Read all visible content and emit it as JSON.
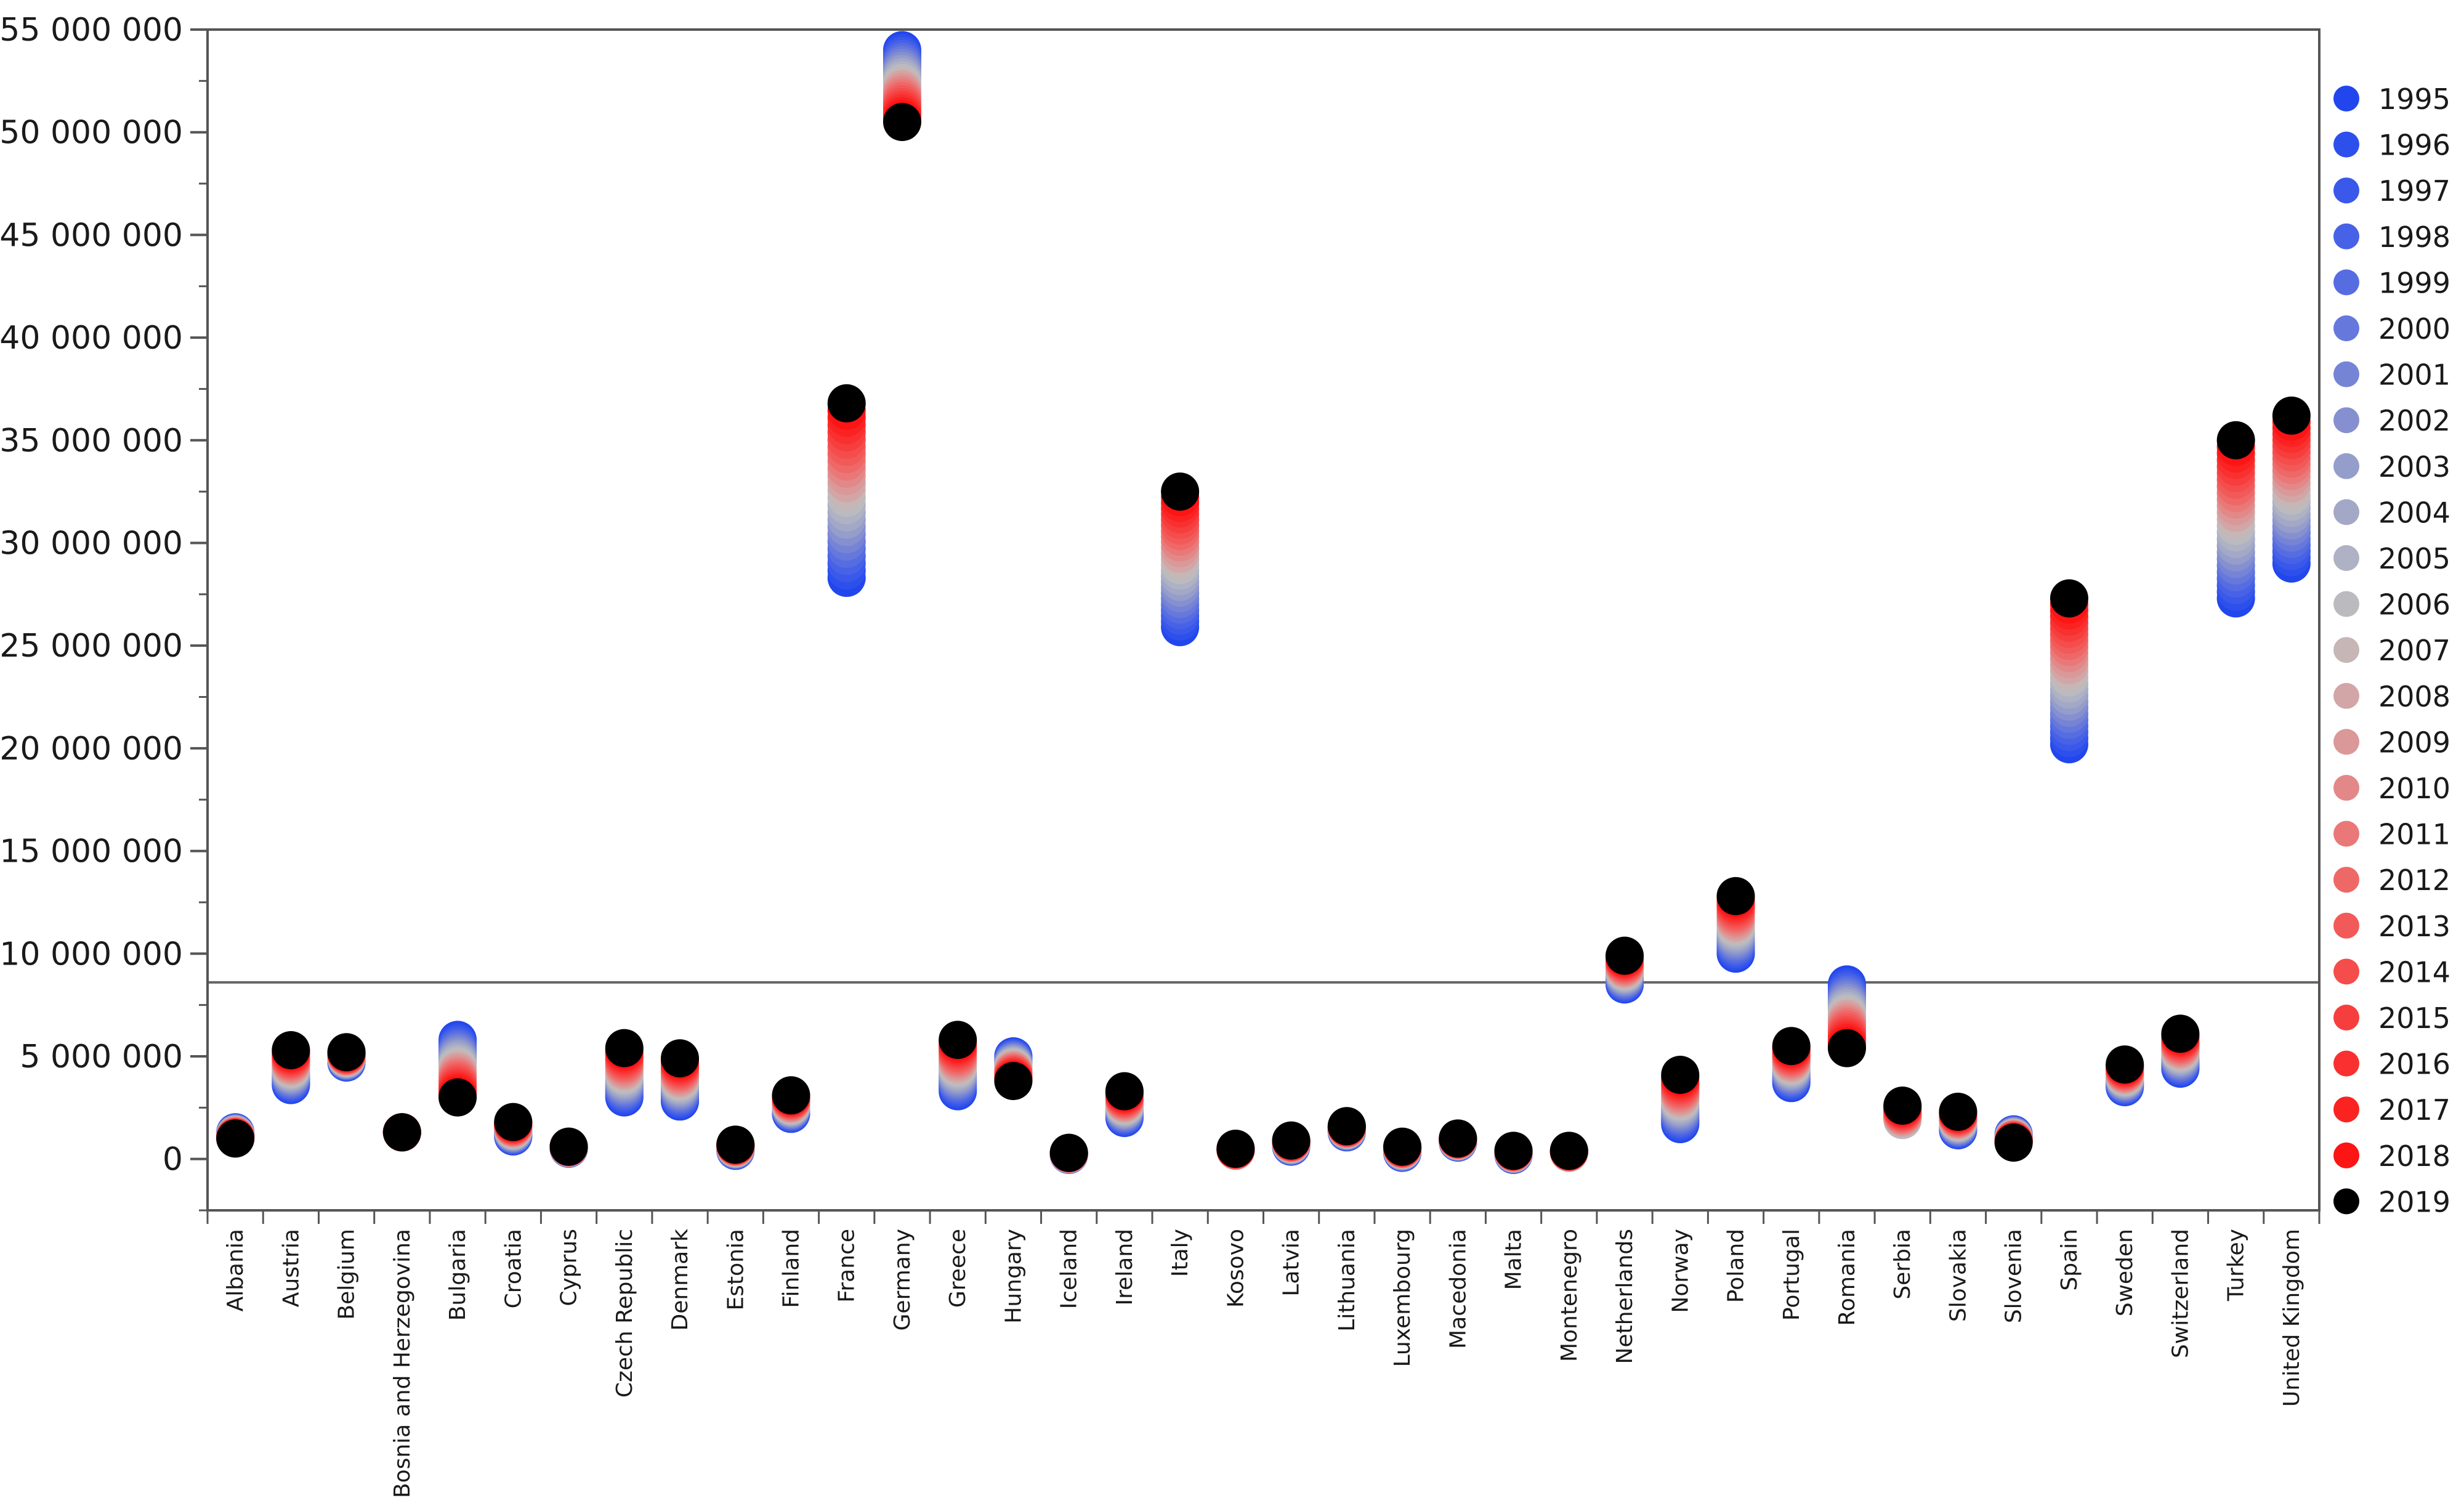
{
  "chart_data": {
    "type": "scatter",
    "title": "",
    "xlabel": "",
    "ylabel": "",
    "ylim": [
      -2500000,
      55000000
    ],
    "y_ticks": [
      {
        "value": 0,
        "label": "0"
      },
      {
        "value": 5000000,
        "label": "5 000 000"
      },
      {
        "value": 10000000,
        "label": "10 000 000"
      },
      {
        "value": 15000000,
        "label": "15 000 000"
      },
      {
        "value": 20000000,
        "label": "20 000 000"
      },
      {
        "value": 25000000,
        "label": "25 000 000"
      },
      {
        "value": 30000000,
        "label": "30 000 000"
      },
      {
        "value": 35000000,
        "label": "35 000 000"
      },
      {
        "value": 40000000,
        "label": "40 000 000"
      },
      {
        "value": 45000000,
        "label": "45 000 000"
      },
      {
        "value": 50000000,
        "label": "50 000 000"
      },
      {
        "value": 55000000,
        "label": "55 000 000"
      }
    ],
    "reference_line": 8600000,
    "legend_position": "right",
    "colors": {
      "1995": "#2246ee",
      "1996": "#2d4fec",
      "1997": "#3a58ea",
      "1998": "#4762e6",
      "1999": "#566de2",
      "2000": "#6678dc",
      "2001": "#7684d6",
      "2002": "#8690d0",
      "2003": "#959dca",
      "2004": "#a2a8c6",
      "2005": "#aeb2c4",
      "2006": "#bbbbbf",
      "2007": "#c7b6b6",
      "2008": "#d2a6a6",
      "2009": "#db9898",
      "2010": "#e28888",
      "2011": "#ea7878",
      "2012": "#ef6868",
      "2013": "#f25a5a",
      "2014": "#f54c4c",
      "2015": "#f73e3e",
      "2016": "#f93030",
      "2017": "#fb2222",
      "2018": "#fd1414",
      "2019": "#000000"
    },
    "years": [
      "1995",
      "1996",
      "1997",
      "1998",
      "1999",
      "2000",
      "2001",
      "2002",
      "2003",
      "2004",
      "2005",
      "2006",
      "2007",
      "2008",
      "2009",
      "2010",
      "2011",
      "2012",
      "2013",
      "2014",
      "2015",
      "2016",
      "2017",
      "2018",
      "2019"
    ],
    "categories": [
      "Albania",
      "Austria",
      "Belgium",
      "Bosnia and Herzegovina",
      "Bulgaria",
      "Croatia",
      "Cyprus",
      "Czech Republic",
      "Denmark",
      "Estonia",
      "Finland",
      "France",
      "Germany",
      "Greece",
      "Hungary",
      "Iceland",
      "Ireland",
      "Italy",
      "Kosovo",
      "Latvia",
      "Lithuania",
      "Luxembourg",
      "Macedonia",
      "Malta",
      "Montenegro",
      "Netherlands",
      "Norway",
      "Poland",
      "Portugal",
      "Romania",
      "Serbia",
      "Slovakia",
      "Slovenia",
      "Spain",
      "Sweden",
      "Switzerland",
      "Turkey",
      "United Kingdom"
    ],
    "series": [
      {
        "name": "Albania",
        "start": 1300000,
        "end": 1000000,
        "start_year": "1995"
      },
      {
        "name": "Austria",
        "start": 3600000,
        "end": 5300000,
        "start_year": "1995"
      },
      {
        "name": "Belgium",
        "start": 4700000,
        "end": 5200000,
        "start_year": "1995"
      },
      {
        "name": "Bosnia and Herzegovina",
        "start": 1300000,
        "end": 1300000,
        "start_year": "2008"
      },
      {
        "name": "Bulgaria",
        "start": 5800000,
        "end": 3000000,
        "start_year": "1995"
      },
      {
        "name": "Croatia",
        "start": 1100000,
        "end": 1800000,
        "start_year": "1995"
      },
      {
        "name": "Cyprus",
        "start": 500000,
        "end": 600000,
        "start_year": "1995"
      },
      {
        "name": "Czech Republic",
        "start": 3000000,
        "end": 5400000,
        "start_year": "1995"
      },
      {
        "name": "Denmark",
        "start": 2800000,
        "end": 4900000,
        "start_year": "1995"
      },
      {
        "name": "Estonia",
        "start": 400000,
        "end": 700000,
        "start_year": "1995"
      },
      {
        "name": "Finland",
        "start": 2200000,
        "end": 3100000,
        "start_year": "1995"
      },
      {
        "name": "France",
        "start": 28300000,
        "end": 36800000,
        "start_year": "1995"
      },
      {
        "name": "Germany",
        "start": 54000000,
        "end": 50500000,
        "start_year": "1995"
      },
      {
        "name": "Greece",
        "start": 3300000,
        "end": 5800000,
        "start_year": "1995"
      },
      {
        "name": "Hungary",
        "start": 5000000,
        "end": 3800000,
        "start_year": "1995"
      },
      {
        "name": "Iceland",
        "start": 200000,
        "end": 300000,
        "start_year": "1995"
      },
      {
        "name": "Ireland",
        "start": 2000000,
        "end": 3300000,
        "start_year": "1995"
      },
      {
        "name": "Italy",
        "start": 25900000,
        "end": 32500000,
        "start_year": "1995"
      },
      {
        "name": "Kosovo",
        "start": 400000,
        "end": 500000,
        "start_year": "2008"
      },
      {
        "name": "Latvia",
        "start": 600000,
        "end": 900000,
        "start_year": "1995"
      },
      {
        "name": "Lithuania",
        "start": 1300000,
        "end": 1600000,
        "start_year": "1995"
      },
      {
        "name": "Luxembourg",
        "start": 300000,
        "end": 600000,
        "start_year": "1995"
      },
      {
        "name": "Macedonia",
        "start": 800000,
        "end": 1000000,
        "start_year": "1995"
      },
      {
        "name": "Malta",
        "start": 200000,
        "end": 400000,
        "start_year": "1995"
      },
      {
        "name": "Montenegro",
        "start": 300000,
        "end": 400000,
        "start_year": "2006"
      },
      {
        "name": "Netherlands",
        "start": 8500000,
        "end": 9900000,
        "start_year": "1995"
      },
      {
        "name": "Norway",
        "start": 1700000,
        "end": 4100000,
        "start_year": "1995"
      },
      {
        "name": "Poland",
        "start": 10000000,
        "end": 12800000,
        "start_year": "1995"
      },
      {
        "name": "Portugal",
        "start": 3700000,
        "end": 5500000,
        "start_year": "1995"
      },
      {
        "name": "Romania",
        "start": 8500000,
        "end": 5400000,
        "start_year": "1995"
      },
      {
        "name": "Serbia",
        "start": 1900000,
        "end": 2600000,
        "start_year": "2006"
      },
      {
        "name": "Slovakia",
        "start": 1400000,
        "end": 2300000,
        "start_year": "1995"
      },
      {
        "name": "Slovenia",
        "start": 1200000,
        "end": 800000,
        "start_year": "1995"
      },
      {
        "name": "Spain",
        "start": 20200000,
        "end": 27300000,
        "start_year": "1995"
      },
      {
        "name": "Sweden",
        "start": 3500000,
        "end": 4600000,
        "start_year": "1995"
      },
      {
        "name": "Switzerland",
        "start": 4400000,
        "end": 6100000,
        "start_year": "1995"
      },
      {
        "name": "Turkey",
        "start": 27300000,
        "end": 35000000,
        "start_year": "1995"
      },
      {
        "name": "United Kingdom",
        "start": 29000000,
        "end": 36200000,
        "start_year": "1995"
      }
    ]
  }
}
